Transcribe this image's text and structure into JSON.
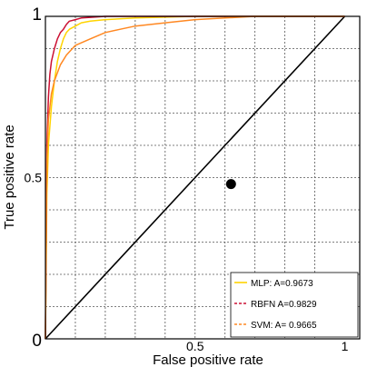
{
  "chart_data": {
    "type": "line",
    "title": "",
    "xlabel": "False positive rate",
    "ylabel": "True positive rate",
    "xlim": [
      0,
      1.05
    ],
    "ylim": [
      0,
      1
    ],
    "x_ticks": [
      {
        "value": 0,
        "label": ""
      },
      {
        "value": 0.5,
        "label": "0.5"
      },
      {
        "value": 1,
        "label": "1"
      }
    ],
    "y_ticks": [
      {
        "value": 0,
        "label": "0"
      },
      {
        "value": 0.5,
        "label": "0.5"
      },
      {
        "value": 1,
        "label": "1"
      }
    ],
    "origin_label": "0",
    "grid": true,
    "legend_position": "bottom-right",
    "series": [
      {
        "name": "MLP: A=0.9673",
        "color": "#ffd400",
        "style": "solid",
        "x": [
          0,
          0.005,
          0.01,
          0.02,
          0.03,
          0.04,
          0.05,
          0.06,
          0.07,
          0.08,
          0.1,
          0.12,
          0.15,
          0.2,
          0.3,
          0.5,
          0.7,
          1.0
        ],
        "y": [
          0,
          0.45,
          0.6,
          0.72,
          0.8,
          0.86,
          0.9,
          0.93,
          0.95,
          0.96,
          0.97,
          0.98,
          0.985,
          0.99,
          0.995,
          1.0,
          1.0,
          1.0
        ]
      },
      {
        "name": "RBFN A=0.9829",
        "color": "#cc1133",
        "style": "solid",
        "x": [
          0,
          0.005,
          0.01,
          0.015,
          0.02,
          0.03,
          0.04,
          0.05,
          0.06,
          0.07,
          0.08,
          0.1,
          0.12,
          0.15,
          0.2,
          0.3,
          0.5,
          1.0
        ],
        "y": [
          0,
          0.6,
          0.75,
          0.82,
          0.86,
          0.9,
          0.93,
          0.95,
          0.96,
          0.975,
          0.985,
          0.99,
          0.995,
          0.997,
          1.0,
          1.0,
          1.0,
          1.0
        ]
      },
      {
        "name": "SVM: A= 0.9665",
        "color": "#ff8822",
        "style": "solid",
        "x": [
          0,
          0.005,
          0.01,
          0.02,
          0.03,
          0.05,
          0.07,
          0.1,
          0.15,
          0.2,
          0.25,
          0.3,
          0.4,
          0.5,
          0.6,
          0.7,
          0.8,
          1.0
        ],
        "y": [
          0,
          0.55,
          0.68,
          0.76,
          0.8,
          0.85,
          0.88,
          0.91,
          0.93,
          0.95,
          0.96,
          0.97,
          0.98,
          0.99,
          0.995,
          1.0,
          1.0,
          1.0
        ]
      },
      {
        "name": "",
        "color": "#000000",
        "style": "diagonal",
        "x": [
          0,
          1
        ],
        "y": [
          0,
          1
        ]
      }
    ],
    "markers": [
      {
        "x": 0.62,
        "y": 0.48,
        "color": "#000000"
      }
    ]
  }
}
